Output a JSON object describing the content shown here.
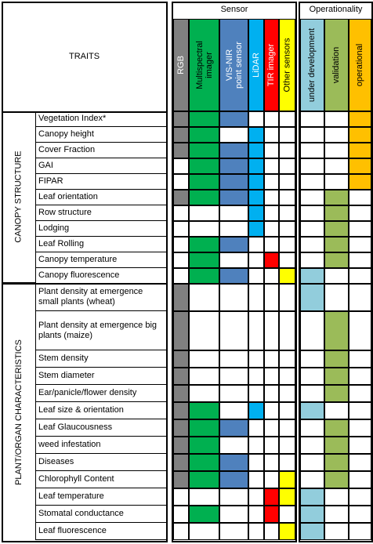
{
  "header": {
    "traits_label": "TRAITS",
    "sensor_label": "Sensor",
    "operationality_label": "Operationality"
  },
  "sensor_columns": [
    {
      "label": "RGB",
      "color": "#808080",
      "text_color": "#ffffff"
    },
    {
      "label": "Multispectral\nimager",
      "color": "#00b050",
      "text_color": "#000000"
    },
    {
      "label": "VIS-NIR\npoint sensor",
      "color": "#4f81bd",
      "text_color": "#ffffff"
    },
    {
      "label": "LiDAR",
      "color": "#00b0f0",
      "text_color": "#ffffff"
    },
    {
      "label": "TIR imager",
      "color": "#ff0000",
      "text_color": "#ffffff"
    },
    {
      "label": "Other sensors",
      "color": "#ffff00",
      "text_color": "#000000"
    }
  ],
  "operationality_columns": [
    {
      "label": "under development",
      "color": "#92cddc"
    },
    {
      "label": "validation",
      "color": "#9bbb59"
    },
    {
      "label": "operational",
      "color": "#ffc000"
    }
  ],
  "groups": [
    {
      "name": "CANOPY STRUCTURE",
      "rows": [
        {
          "trait": "Vegetation Index*",
          "sensors": [
            1,
            1,
            1,
            0,
            0,
            0
          ],
          "op": [
            0,
            0,
            1
          ]
        },
        {
          "trait": "Canopy height",
          "sensors": [
            1,
            1,
            0,
            1,
            0,
            0
          ],
          "op": [
            0,
            0,
            1
          ]
        },
        {
          "trait": "Cover Fraction",
          "sensors": [
            1,
            1,
            1,
            1,
            0,
            0
          ],
          "op": [
            0,
            0,
            1
          ]
        },
        {
          "trait": "GAI",
          "sensors": [
            0,
            1,
            1,
            1,
            0,
            0
          ],
          "op": [
            0,
            0,
            1
          ]
        },
        {
          "trait": "FIPAR",
          "sensors": [
            0,
            1,
            1,
            1,
            0,
            0
          ],
          "op": [
            0,
            0,
            1
          ]
        },
        {
          "trait": "Leaf orientation",
          "sensors": [
            1,
            1,
            1,
            1,
            0,
            0
          ],
          "op": [
            0,
            1,
            0
          ]
        },
        {
          "trait": "Row structure",
          "sensors": [
            0,
            0,
            0,
            1,
            0,
            0
          ],
          "op": [
            0,
            1,
            0
          ]
        },
        {
          "trait": "Lodging",
          "sensors": [
            0,
            0,
            0,
            1,
            0,
            0
          ],
          "op": [
            0,
            1,
            0
          ]
        },
        {
          "trait": "Leaf Rolling",
          "sensors": [
            0,
            1,
            1,
            0,
            0,
            0
          ],
          "op": [
            0,
            1,
            0
          ]
        },
        {
          "trait": "Canopy temperature",
          "sensors": [
            0,
            1,
            0,
            0,
            1,
            0
          ],
          "op": [
            0,
            1,
            0
          ]
        },
        {
          "trait": "Canopy fluorescence",
          "sensors": [
            0,
            1,
            1,
            0,
            0,
            1
          ],
          "op": [
            1,
            0,
            0
          ]
        }
      ]
    },
    {
      "name": "PLANT/ORGAN CHARACTERISTICS",
      "rows": [
        {
          "trait": "Plant density at emergence\nsmall plants (wheat)",
          "sensors": [
            1,
            0,
            0,
            0,
            0,
            0
          ],
          "op": [
            1,
            0,
            0
          ]
        },
        {
          "trait": "Plant density at emergence big\nplants (maize)",
          "sensors": [
            1,
            0,
            0,
            0,
            0,
            0
          ],
          "op": [
            0,
            1,
            0
          ]
        },
        {
          "trait": "Stem density",
          "sensors": [
            1,
            0,
            0,
            0,
            0,
            0
          ],
          "op": [
            0,
            1,
            0
          ]
        },
        {
          "trait": "Stem diameter",
          "sensors": [
            1,
            0,
            0,
            0,
            0,
            0
          ],
          "op": [
            0,
            1,
            0
          ]
        },
        {
          "trait": "Ear/panicle/flower density",
          "sensors": [
            1,
            0,
            0,
            0,
            0,
            0
          ],
          "op": [
            0,
            1,
            0
          ]
        },
        {
          "trait": "Leaf size & orientation",
          "sensors": [
            1,
            1,
            0,
            1,
            0,
            0
          ],
          "op": [
            1,
            0,
            0
          ]
        },
        {
          "trait": "Leaf Glaucousness",
          "sensors": [
            1,
            1,
            1,
            0,
            0,
            0
          ],
          "op": [
            0,
            1,
            0
          ]
        },
        {
          "trait": "weed infestation",
          "sensors": [
            1,
            1,
            0,
            0,
            0,
            0
          ],
          "op": [
            0,
            1,
            0
          ]
        },
        {
          "trait": "Diseases",
          "sensors": [
            1,
            1,
            1,
            0,
            0,
            0
          ],
          "op": [
            0,
            1,
            0
          ]
        },
        {
          "trait": "Chlorophyll Content",
          "sensors": [
            1,
            1,
            1,
            0,
            0,
            1
          ],
          "op": [
            0,
            1,
            0
          ]
        },
        {
          "trait": "Leaf temperature",
          "sensors": [
            0,
            0,
            0,
            0,
            1,
            1
          ],
          "op": [
            1,
            0,
            0
          ]
        },
        {
          "trait": "Stomatal conductance",
          "sensors": [
            0,
            1,
            0,
            0,
            1,
            0
          ],
          "op": [
            1,
            0,
            0
          ]
        },
        {
          "trait": "Leaf fluorescence",
          "sensors": [
            0,
            0,
            0,
            0,
            0,
            1
          ],
          "op": [
            1,
            0,
            0
          ]
        }
      ]
    }
  ]
}
